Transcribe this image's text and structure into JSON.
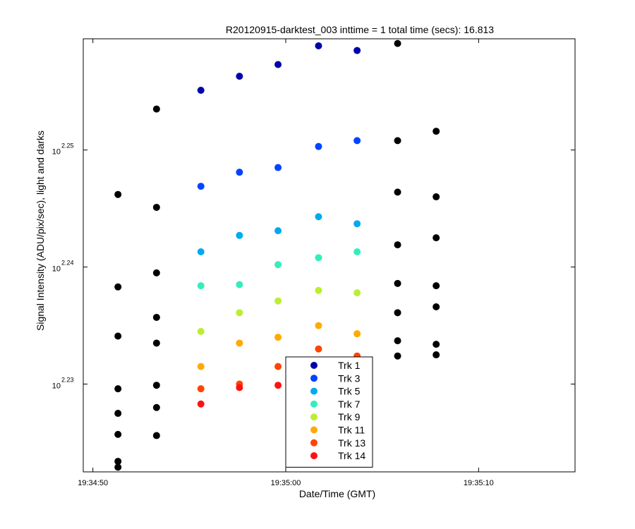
{
  "chart_data": {
    "type": "scatter",
    "title": "R20120915-darktest_003 inttime = 1 total time (secs): 16.813",
    "xlabel": "Date/Time (GMT)",
    "ylabel": "Signal Intensity (ADU/pix/sec), light and darks",
    "x_ticks": [
      "19:34:50",
      "19:35:00",
      "19:35:10"
    ],
    "x_tick_seconds": [
      50,
      60,
      70
    ],
    "xlim_seconds": [
      49.5,
      75.0
    ],
    "y_scale": "log",
    "y_tick_base": "10",
    "y_tick_exponents": [
      "2.23",
      "2.24",
      "2.25"
    ],
    "y_tick_values": [
      2.23,
      2.24,
      2.25
    ],
    "ylim_exponent": [
      2.2225,
      2.2595
    ],
    "legend_position": "bottom-center",
    "series": [
      {
        "name": "Trk 1",
        "color": "#0000aa",
        "points": [
          [
            55.6,
            2.2551
          ],
          [
            57.6,
            2.2563
          ],
          [
            59.6,
            2.2573
          ],
          [
            61.7,
            2.2589
          ],
          [
            63.7,
            2.2585
          ]
        ]
      },
      {
        "name": "Trk 3",
        "color": "#0044ff",
        "points": [
          [
            55.6,
            2.2469
          ],
          [
            57.6,
            2.2481
          ],
          [
            59.6,
            2.2485
          ],
          [
            61.7,
            2.2503
          ],
          [
            63.7,
            2.2508
          ]
        ]
      },
      {
        "name": "Trk 5",
        "color": "#00aaee",
        "points": [
          [
            55.6,
            2.2413
          ],
          [
            57.6,
            2.2427
          ],
          [
            59.6,
            2.2431
          ],
          [
            61.7,
            2.2443
          ],
          [
            63.7,
            2.2437
          ]
        ]
      },
      {
        "name": "Trk 7",
        "color": "#33eebb",
        "points": [
          [
            55.6,
            2.2384
          ],
          [
            57.6,
            2.2385
          ],
          [
            59.6,
            2.2402
          ],
          [
            61.7,
            2.2408
          ],
          [
            63.7,
            2.2413
          ]
        ]
      },
      {
        "name": "Trk 9",
        "color": "#bbee33",
        "points": [
          [
            55.6,
            2.2345
          ],
          [
            57.6,
            2.2361
          ],
          [
            59.6,
            2.2371
          ],
          [
            61.7,
            2.238
          ],
          [
            63.7,
            2.2378
          ]
        ]
      },
      {
        "name": "Trk 11",
        "color": "#ffaa00",
        "points": [
          [
            55.6,
            2.2315
          ],
          [
            57.6,
            2.2335
          ],
          [
            59.6,
            2.234
          ],
          [
            61.7,
            2.235
          ],
          [
            63.7,
            2.2343
          ]
        ]
      },
      {
        "name": "Trk 13",
        "color": "#ff4400",
        "points": [
          [
            55.6,
            2.2296
          ],
          [
            57.6,
            2.23
          ],
          [
            59.6,
            2.2315
          ],
          [
            61.7,
            2.233
          ],
          [
            63.7,
            2.2324
          ]
        ]
      },
      {
        "name": "Trk 14",
        "color": "#ff1111",
        "points": [
          [
            55.6,
            2.2283
          ],
          [
            57.6,
            2.2297
          ],
          [
            59.6,
            2.2299
          ]
        ]
      },
      {
        "name": "",
        "color": "#000000",
        "points": [
          [
            51.3,
            2.2462
          ],
          [
            51.3,
            2.2383
          ],
          [
            51.3,
            2.2341
          ],
          [
            51.3,
            2.2296
          ],
          [
            51.3,
            2.2275
          ],
          [
            51.3,
            2.2257
          ],
          [
            51.3,
            2.2234
          ],
          [
            51.3,
            2.2229
          ],
          [
            53.3,
            2.2535
          ],
          [
            53.3,
            2.2451
          ],
          [
            53.3,
            2.2395
          ],
          [
            53.3,
            2.2357
          ],
          [
            53.3,
            2.2335
          ],
          [
            53.3,
            2.2299
          ],
          [
            53.3,
            2.228
          ],
          [
            53.3,
            2.2256
          ],
          [
            65.8,
            2.2591
          ],
          [
            65.8,
            2.2508
          ],
          [
            65.8,
            2.2464
          ],
          [
            65.8,
            2.2419
          ],
          [
            65.8,
            2.2386
          ],
          [
            65.8,
            2.2361
          ],
          [
            65.8,
            2.2337
          ],
          [
            65.8,
            2.2324
          ],
          [
            67.8,
            2.2516
          ],
          [
            67.8,
            2.246
          ],
          [
            67.8,
            2.2425
          ],
          [
            67.8,
            2.2384
          ],
          [
            67.8,
            2.2366
          ],
          [
            67.8,
            2.2334
          ],
          [
            67.8,
            2.2325
          ]
        ]
      }
    ]
  }
}
